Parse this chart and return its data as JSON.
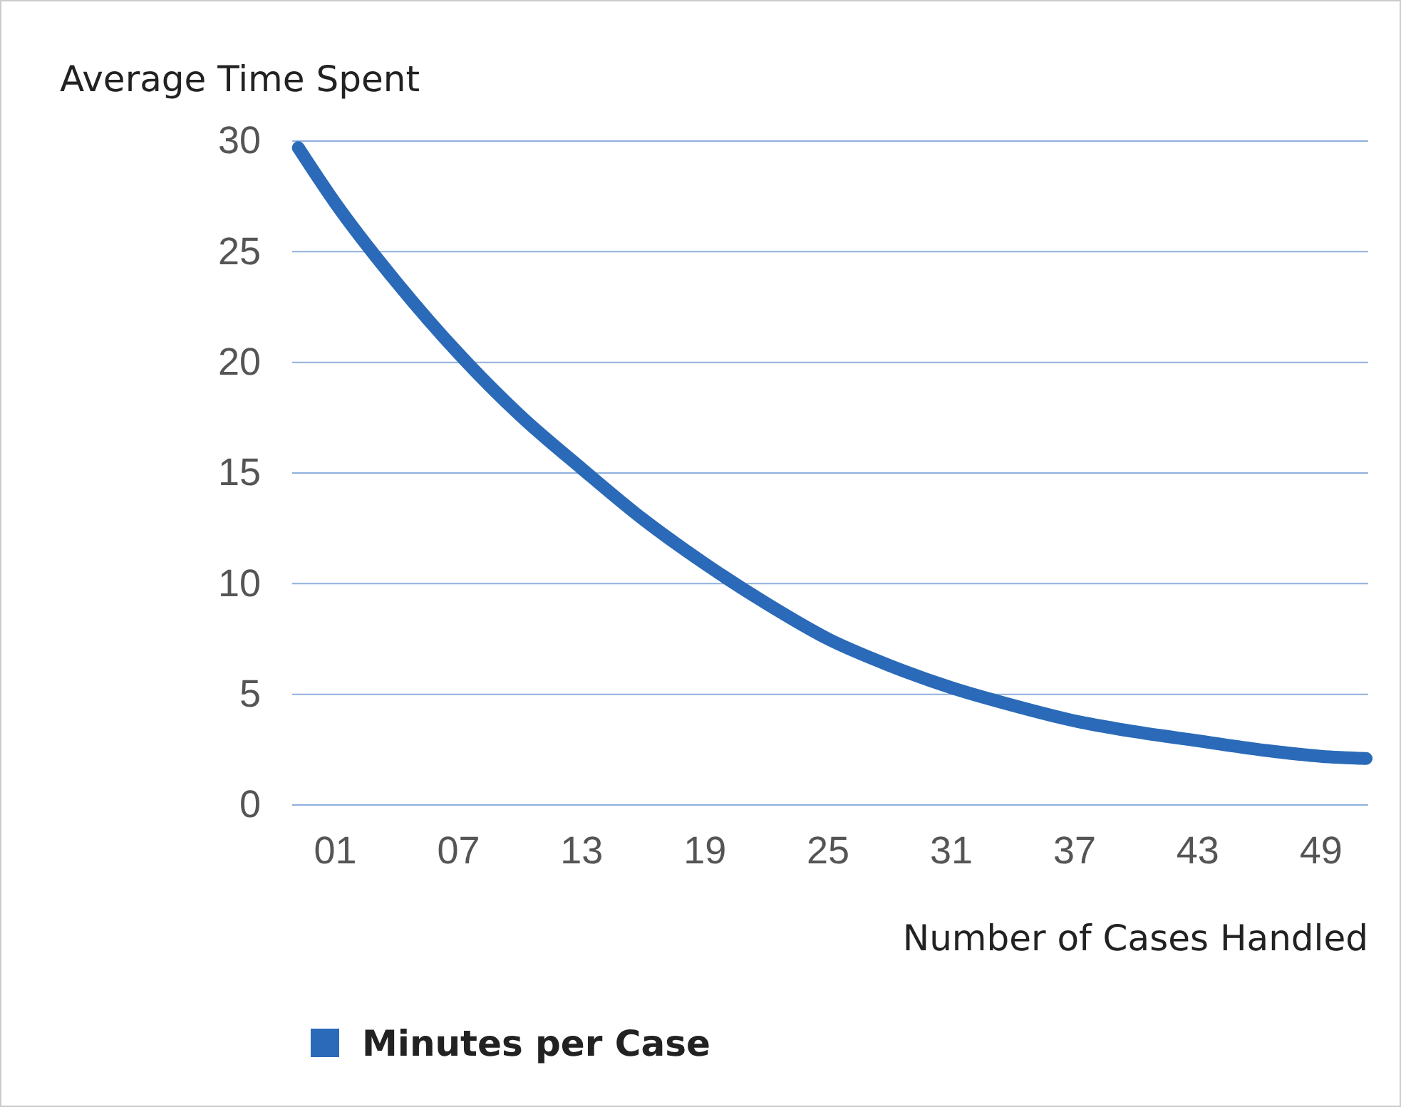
{
  "chart_data": {
    "type": "line",
    "xlabel": "Number of Cases Handled",
    "ylabel": "Average Time Spent",
    "x": [
      -0.8,
      1,
      4,
      7,
      10,
      13,
      16,
      19,
      22,
      25,
      28,
      31,
      34,
      37,
      40,
      43,
      46,
      49,
      51.2
    ],
    "series": [
      {
        "name": "Minutes per Case",
        "color": "#2a6ab8",
        "values": [
          29.7,
          27.2,
          23.6,
          20.4,
          17.6,
          15.2,
          12.9,
          10.9,
          9.1,
          7.5,
          6.3,
          5.3,
          4.5,
          3.8,
          3.3,
          2.9,
          2.5,
          2.2,
          2.1
        ]
      }
    ],
    "xlim": [
      -1.1,
      51.3
    ],
    "xticks": [
      {
        "value": 1,
        "label": "01"
      },
      {
        "value": 7,
        "label": "07"
      },
      {
        "value": 13,
        "label": "13"
      },
      {
        "value": 19,
        "label": "19"
      },
      {
        "value": 25,
        "label": "25"
      },
      {
        "value": 31,
        "label": "31"
      },
      {
        "value": 37,
        "label": "37"
      },
      {
        "value": 43,
        "label": "43"
      },
      {
        "value": 49,
        "label": "49"
      }
    ],
    "ylim": [
      0,
      30
    ],
    "yticks": [
      0,
      5,
      10,
      15,
      20,
      25,
      30
    ],
    "grid": "y",
    "legend": "bottom",
    "marker": "none",
    "line_style": "solid"
  }
}
